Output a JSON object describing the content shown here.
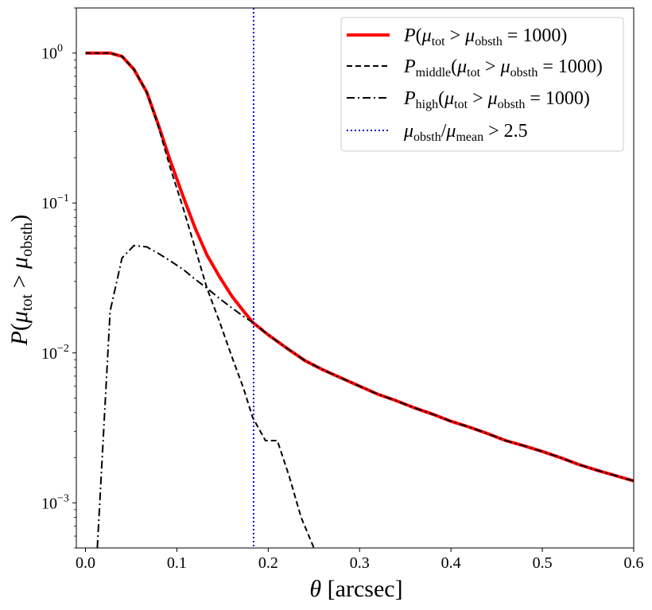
{
  "chart_data": {
    "type": "line",
    "title": "",
    "xlabel": "θ [arcsec]",
    "ylabel": "P(μ_tot > μ_obsth)",
    "xlim": [
      -0.01,
      0.6
    ],
    "ylim": [
      0.0005,
      2.0
    ],
    "yscale": "log",
    "grid": false,
    "legend_position": "top-right",
    "x_ticks": [
      0.0,
      0.1,
      0.2,
      0.3,
      0.4,
      0.5,
      0.6
    ],
    "x_tick_labels": [
      "0.0",
      "0.1",
      "0.2",
      "0.3",
      "0.4",
      "0.5",
      "0.6"
    ],
    "y_ticks": [
      0.001,
      0.01,
      0.1,
      1
    ],
    "y_tick_labels": [
      {
        "base": "10",
        "exp": "−3"
      },
      {
        "base": "10",
        "exp": "−2"
      },
      {
        "base": "10",
        "exp": "−1"
      },
      {
        "base": "10",
        "exp": "0"
      }
    ],
    "series": [
      {
        "name": "P(μ_tot > μ_obsth = 1000)",
        "color": "#ff0000",
        "style": "solid-thick",
        "x": [
          0.0,
          0.013,
          0.027,
          0.04,
          0.053,
          0.067,
          0.08,
          0.093,
          0.107,
          0.12,
          0.133,
          0.147,
          0.16,
          0.173,
          0.183,
          0.2,
          0.22,
          0.24,
          0.26,
          0.28,
          0.3,
          0.32,
          0.34,
          0.36,
          0.38,
          0.4,
          0.42,
          0.44,
          0.46,
          0.48,
          0.5,
          0.52,
          0.54,
          0.56,
          0.58,
          0.6
        ],
        "y": [
          1.0,
          1.0,
          1.0,
          0.95,
          0.78,
          0.55,
          0.33,
          0.19,
          0.11,
          0.068,
          0.045,
          0.032,
          0.024,
          0.019,
          0.016,
          0.0132,
          0.0108,
          0.0089,
          0.0077,
          0.0068,
          0.006,
          0.0053,
          0.0048,
          0.0043,
          0.0039,
          0.0035,
          0.0032,
          0.0029,
          0.0026,
          0.0024,
          0.0022,
          0.002,
          0.0018,
          0.00165,
          0.00152,
          0.0014
        ]
      },
      {
        "name": "P_middle(μ_tot > μ_obsth = 1000)",
        "color": "#000000",
        "style": "dashed",
        "x": [
          0.0,
          0.013,
          0.027,
          0.04,
          0.053,
          0.067,
          0.08,
          0.093,
          0.107,
          0.12,
          0.133,
          0.147,
          0.16,
          0.173,
          0.183,
          0.197,
          0.21,
          0.223,
          0.236,
          0.25
        ],
        "y": [
          1.0,
          1.0,
          1.0,
          0.95,
          0.78,
          0.55,
          0.32,
          0.17,
          0.092,
          0.05,
          0.027,
          0.016,
          0.0095,
          0.0058,
          0.0037,
          0.0026,
          0.0026,
          0.0015,
          0.0008,
          0.0005
        ]
      },
      {
        "name": "P_high(μ_tot > μ_obsth = 1000)",
        "color": "#000000",
        "style": "dashdot",
        "x": [
          0.013,
          0.027,
          0.04,
          0.053,
          0.067,
          0.08,
          0.093,
          0.107,
          0.12,
          0.133,
          0.147,
          0.16,
          0.173,
          0.183,
          0.2,
          0.22,
          0.24,
          0.26,
          0.28,
          0.3,
          0.32,
          0.34,
          0.36,
          0.38,
          0.4,
          0.42,
          0.44,
          0.46,
          0.48,
          0.5,
          0.52,
          0.54,
          0.56,
          0.58,
          0.6
        ],
        "y": [
          0.0005,
          0.019,
          0.043,
          0.052,
          0.051,
          0.046,
          0.041,
          0.036,
          0.031,
          0.027,
          0.023,
          0.02,
          0.0175,
          0.016,
          0.0132,
          0.0108,
          0.0089,
          0.0077,
          0.0068,
          0.006,
          0.0053,
          0.0048,
          0.0043,
          0.0039,
          0.0035,
          0.0032,
          0.0029,
          0.0026,
          0.0024,
          0.0022,
          0.002,
          0.0018,
          0.00165,
          0.00152,
          0.0014
        ]
      }
    ],
    "vline": {
      "name": "μ_obsth/μ_mean > 2.5",
      "x": 0.184,
      "color": "#0000cc",
      "style": "dotted"
    },
    "legend": [
      {
        "label": "P(μ_tot > μ_obsth = 1000)",
        "style": "solid-red-thick"
      },
      {
        "label": "P_middle(μ_tot > μ_obsth = 1000)",
        "style": "dashed"
      },
      {
        "label": "P_high(μ_tot > μ_obsth = 1000)",
        "style": "dashdot"
      },
      {
        "label": "μ_obsth/μ_mean > 2.5",
        "style": "dotted-blue"
      }
    ]
  }
}
